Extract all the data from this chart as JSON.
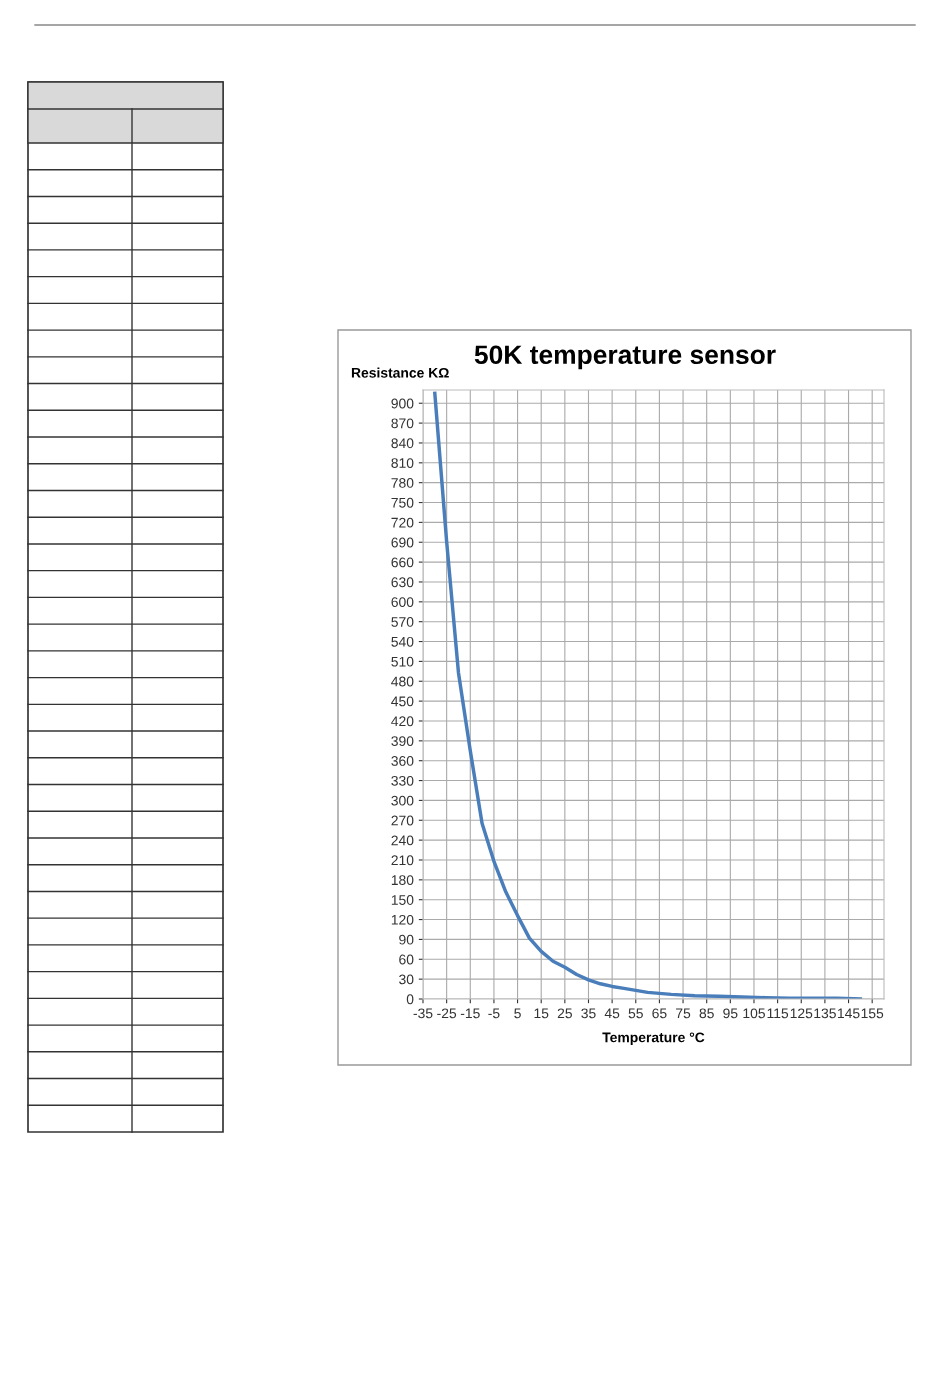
{
  "chart_data": {
    "type": "line",
    "title": "50K temperature sensor",
    "xlabel": "Temperature °C",
    "ylabel": "Resistance KΩ",
    "x": [
      -30,
      -25,
      -20,
      -15,
      -10,
      -5,
      0,
      5,
      10,
      15,
      20,
      25,
      30,
      35,
      40,
      45,
      50,
      60,
      70,
      80,
      90,
      100,
      110,
      120,
      130,
      140,
      150
    ],
    "series": [
      {
        "color": "#4a7ebb",
        "values": [
          915,
          691,
          493,
          375,
          265,
          208,
          162,
          126,
          92,
          72,
          57,
          48,
          37,
          29,
          23,
          19,
          16,
          10,
          7,
          5,
          4,
          3,
          2,
          1,
          1,
          1,
          0
        ]
      }
    ],
    "xlim": [
      -35,
      160
    ],
    "ylim": [
      0,
      920
    ],
    "xticks": [
      -35,
      -25,
      -15,
      -5,
      5,
      15,
      25,
      35,
      45,
      55,
      65,
      75,
      85,
      95,
      105,
      115,
      125,
      135,
      145,
      155
    ],
    "yticks": [
      0,
      30,
      60,
      90,
      120,
      150,
      180,
      210,
      240,
      270,
      300,
      330,
      360,
      390,
      420,
      450,
      480,
      510,
      540,
      570,
      600,
      630,
      660,
      690,
      720,
      750,
      780,
      810,
      840,
      870,
      900
    ],
    "grid": true,
    "legend": false,
    "marker": "none",
    "line_style": "solid"
  }
}
